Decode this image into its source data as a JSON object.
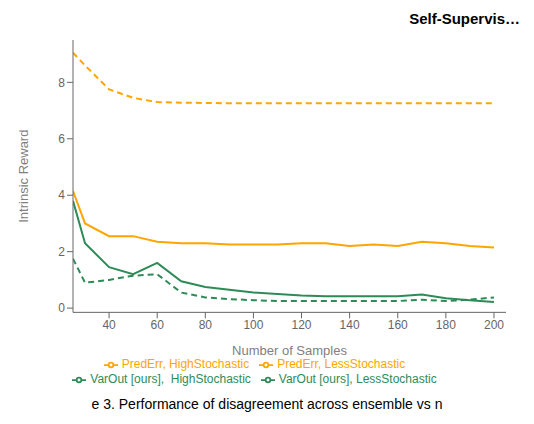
{
  "chart_data": {
    "type": "line",
    "title": "Self-Supervis…",
    "annotations": [
      "e 3. Performance of disagreement across ensemble vs n"
    ],
    "xlabel": "Number of Samples",
    "ylabel": "Intrinsic Reward",
    "xlim": [
      25,
      205
    ],
    "ylim": [
      -0.15,
      9.5
    ],
    "xticks": [
      40,
      60,
      80,
      100,
      120,
      140,
      160,
      180,
      200
    ],
    "yticks": [
      0,
      2,
      4,
      6,
      8
    ],
    "grid": false,
    "legend": "bottom",
    "series": [
      {
        "name": "PredErr, LessStochastic",
        "color": "#FFA500",
        "line_style": "solid",
        "x": [
          25,
          30,
          40,
          50,
          60,
          70,
          80,
          90,
          100,
          110,
          120,
          130,
          140,
          150,
          160,
          170,
          180,
          190,
          200
        ],
        "values": [
          4.15,
          3.0,
          2.55,
          2.55,
          2.35,
          2.3,
          2.3,
          2.25,
          2.25,
          2.25,
          2.3,
          2.3,
          2.2,
          2.25,
          2.2,
          2.35,
          2.3,
          2.2,
          2.15
        ]
      },
      {
        "name": "PredErr, HighStochastic",
        "color": "#FFA500",
        "line_style": "dashed",
        "x": [
          25,
          30,
          40,
          50,
          60,
          70,
          80,
          90,
          100,
          110,
          120,
          130,
          140,
          150,
          160,
          170,
          180,
          190,
          200
        ],
        "values": [
          9.05,
          8.6,
          7.75,
          7.45,
          7.3,
          7.28,
          7.27,
          7.26,
          7.26,
          7.26,
          7.26,
          7.26,
          7.26,
          7.26,
          7.26,
          7.26,
          7.26,
          7.26,
          7.26
        ]
      },
      {
        "name": "VarOut [ours], LessStochastic",
        "color": "#2E8B57",
        "line_style": "solid",
        "x": [
          25,
          30,
          40,
          50,
          60,
          70,
          80,
          90,
          100,
          110,
          120,
          130,
          140,
          150,
          160,
          170,
          180,
          190,
          200
        ],
        "values": [
          3.8,
          2.3,
          1.45,
          1.2,
          1.6,
          0.95,
          0.75,
          0.65,
          0.55,
          0.5,
          0.45,
          0.42,
          0.42,
          0.42,
          0.42,
          0.48,
          0.35,
          0.28,
          0.22
        ]
      },
      {
        "name": "VarOut [ours],  HighStochastic",
        "color": "#2E8B57",
        "line_style": "dashed",
        "x": [
          25,
          30,
          40,
          50,
          60,
          70,
          80,
          90,
          100,
          110,
          120,
          130,
          140,
          150,
          160,
          170,
          180,
          190,
          200
        ],
        "values": [
          1.75,
          0.9,
          1.0,
          1.15,
          1.2,
          0.55,
          0.38,
          0.32,
          0.28,
          0.25,
          0.25,
          0.25,
          0.25,
          0.25,
          0.25,
          0.3,
          0.25,
          0.3,
          0.38
        ]
      }
    ]
  }
}
